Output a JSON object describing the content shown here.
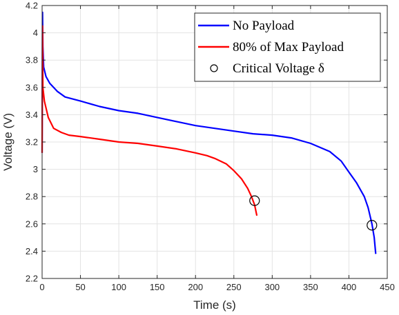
{
  "chart_data": {
    "type": "line",
    "xlabel": "Time (s)",
    "ylabel": "Voltage (V)",
    "xlim": [
      0,
      450
    ],
    "ylim": [
      2.2,
      4.2
    ],
    "xticks": [
      0,
      50,
      100,
      150,
      200,
      250,
      300,
      350,
      400,
      450
    ],
    "yticks": [
      2.2,
      2.4,
      2.6,
      2.8,
      3.0,
      3.2,
      3.4,
      3.6,
      3.8,
      4.0,
      4.2
    ],
    "xtick_labels": [
      "0",
      "50",
      "100",
      "150",
      "200",
      "250",
      "300",
      "350",
      "400",
      "450"
    ],
    "ytick_labels": [
      "2.2",
      "2.4",
      "2.6",
      "2.8",
      "3",
      "3.2",
      "3.4",
      "3.6",
      "3.8",
      "4",
      "4.2"
    ],
    "grid": true,
    "legend_position": "top-right",
    "series": [
      {
        "name": "No Payload",
        "color": "#0000ff",
        "points": [
          [
            0,
            3.12
          ],
          [
            0.5,
            4.15
          ],
          [
            1,
            3.9
          ],
          [
            2,
            3.75
          ],
          [
            5,
            3.68
          ],
          [
            10,
            3.63
          ],
          [
            20,
            3.57
          ],
          [
            30,
            3.53
          ],
          [
            50,
            3.5
          ],
          [
            75,
            3.46
          ],
          [
            100,
            3.43
          ],
          [
            125,
            3.41
          ],
          [
            150,
            3.38
          ],
          [
            175,
            3.35
          ],
          [
            200,
            3.32
          ],
          [
            225,
            3.3
          ],
          [
            250,
            3.28
          ],
          [
            275,
            3.26
          ],
          [
            300,
            3.25
          ],
          [
            325,
            3.23
          ],
          [
            350,
            3.19
          ],
          [
            375,
            3.13
          ],
          [
            390,
            3.06
          ],
          [
            400,
            2.98
          ],
          [
            410,
            2.9
          ],
          [
            420,
            2.8
          ],
          [
            425,
            2.72
          ],
          [
            430,
            2.6
          ],
          [
            433,
            2.5
          ],
          [
            435,
            2.38
          ]
        ]
      },
      {
        "name": "80% of Max Payload",
        "color": "#ff0000",
        "points": [
          [
            0,
            3.12
          ],
          [
            0.5,
            4.05
          ],
          [
            1,
            3.6
          ],
          [
            3,
            3.5
          ],
          [
            8,
            3.38
          ],
          [
            15,
            3.3
          ],
          [
            25,
            3.27
          ],
          [
            35,
            3.25
          ],
          [
            50,
            3.24
          ],
          [
            75,
            3.22
          ],
          [
            100,
            3.2
          ],
          [
            125,
            3.19
          ],
          [
            150,
            3.17
          ],
          [
            175,
            3.15
          ],
          [
            200,
            3.12
          ],
          [
            215,
            3.1
          ],
          [
            225,
            3.08
          ],
          [
            240,
            3.04
          ],
          [
            250,
            2.99
          ],
          [
            260,
            2.93
          ],
          [
            268,
            2.86
          ],
          [
            273,
            2.8
          ],
          [
            277,
            2.74
          ],
          [
            280,
            2.66
          ]
        ]
      },
      {
        "name": "Critical Voltage δ",
        "marker": "circle",
        "points": [
          [
            277,
            2.77
          ],
          [
            430,
            2.59
          ]
        ]
      }
    ]
  }
}
